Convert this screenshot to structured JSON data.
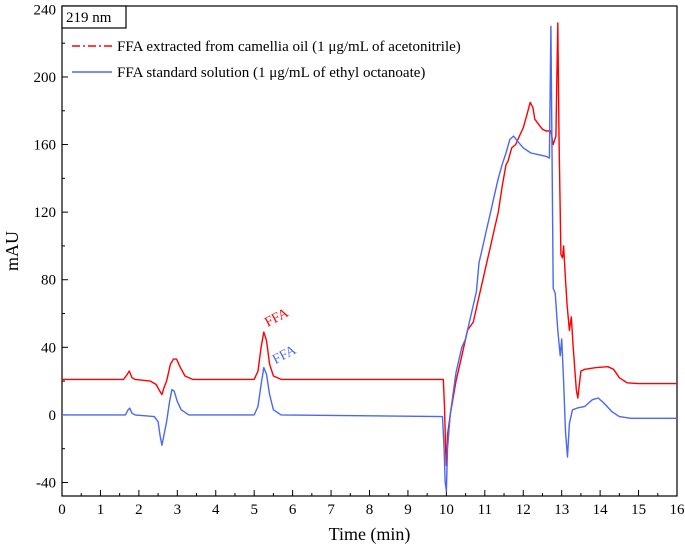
{
  "chart_data": {
    "type": "line",
    "title": "",
    "box_label": "219 nm",
    "xlabel": "Time (min)",
    "ylabel": "mAU",
    "xlim": [
      0,
      16
    ],
    "ylim": [
      -48,
      242
    ],
    "xticks": [
      0,
      1,
      2,
      3,
      4,
      5,
      6,
      7,
      8,
      9,
      10,
      11,
      12,
      13,
      14,
      15,
      16
    ],
    "yticks": [
      -40,
      0,
      40,
      80,
      120,
      160,
      200,
      240
    ],
    "grid": false,
    "legend_position": "top-center",
    "series": [
      {
        "name": "FFA extracted from camellia oil (1 μg/mL of acetonitrile)",
        "color": "#ff0000",
        "style": "dash-dot",
        "points": [
          [
            0,
            21
          ],
          [
            1.6,
            21
          ],
          [
            1.7,
            24
          ],
          [
            1.75,
            26
          ],
          [
            1.82,
            22
          ],
          [
            1.9,
            21
          ],
          [
            2.3,
            20
          ],
          [
            2.45,
            18
          ],
          [
            2.52,
            15
          ],
          [
            2.6,
            12
          ],
          [
            2.65,
            16
          ],
          [
            2.72,
            20
          ],
          [
            2.82,
            30
          ],
          [
            2.9,
            33
          ],
          [
            2.98,
            33
          ],
          [
            3.08,
            28
          ],
          [
            3.2,
            23
          ],
          [
            3.4,
            21
          ],
          [
            5.0,
            21
          ],
          [
            5.1,
            26
          ],
          [
            5.18,
            40
          ],
          [
            5.25,
            49
          ],
          [
            5.32,
            44
          ],
          [
            5.4,
            30
          ],
          [
            5.5,
            23
          ],
          [
            5.7,
            21
          ],
          [
            9.92,
            21
          ],
          [
            9.95,
            5
          ],
          [
            9.98,
            -20
          ],
          [
            10.0,
            -30
          ],
          [
            10.03,
            -12
          ],
          [
            10.1,
            0
          ],
          [
            10.25,
            20
          ],
          [
            10.4,
            35
          ],
          [
            10.55,
            50
          ],
          [
            10.7,
            55
          ],
          [
            10.85,
            70
          ],
          [
            10.95,
            80
          ],
          [
            11.05,
            90
          ],
          [
            11.15,
            100
          ],
          [
            11.25,
            110
          ],
          [
            11.35,
            120
          ],
          [
            11.45,
            135
          ],
          [
            11.55,
            148
          ],
          [
            11.6,
            150
          ],
          [
            11.7,
            158
          ],
          [
            11.8,
            160
          ],
          [
            11.9,
            165
          ],
          [
            12.0,
            170
          ],
          [
            12.1,
            178
          ],
          [
            12.18,
            185
          ],
          [
            12.25,
            182
          ],
          [
            12.3,
            175
          ],
          [
            12.4,
            172
          ],
          [
            12.5,
            169
          ],
          [
            12.6,
            168
          ],
          [
            12.72,
            168
          ],
          [
            12.78,
            160
          ],
          [
            12.85,
            165
          ],
          [
            12.9,
            232
          ],
          [
            12.93,
            165
          ],
          [
            12.98,
            95
          ],
          [
            13.02,
            93
          ],
          [
            13.05,
            100
          ],
          [
            13.1,
            80
          ],
          [
            13.14,
            65
          ],
          [
            13.2,
            50
          ],
          [
            13.25,
            58
          ],
          [
            13.3,
            40
          ],
          [
            13.38,
            15
          ],
          [
            13.42,
            10
          ],
          [
            13.5,
            26
          ],
          [
            13.6,
            27
          ],
          [
            13.9,
            28
          ],
          [
            14.2,
            28.5
          ],
          [
            14.35,
            27
          ],
          [
            14.5,
            22
          ],
          [
            14.7,
            19
          ],
          [
            15.0,
            18.5
          ],
          [
            16.0,
            18.5
          ]
        ]
      },
      {
        "name": "FFA standard solution (1 μg/mL of ethyl octanoate)",
        "color": "#4a68f0",
        "style": "solid",
        "points": [
          [
            0,
            0
          ],
          [
            1.65,
            0
          ],
          [
            1.72,
            3
          ],
          [
            1.76,
            4
          ],
          [
            1.82,
            1
          ],
          [
            1.9,
            0
          ],
          [
            2.4,
            -1
          ],
          [
            2.5,
            -4
          ],
          [
            2.55,
            -12
          ],
          [
            2.6,
            -18
          ],
          [
            2.65,
            -12
          ],
          [
            2.72,
            -4
          ],
          [
            2.8,
            8
          ],
          [
            2.86,
            15
          ],
          [
            2.92,
            14
          ],
          [
            3.0,
            8
          ],
          [
            3.1,
            3
          ],
          [
            3.3,
            0
          ],
          [
            5.0,
            0
          ],
          [
            5.1,
            5
          ],
          [
            5.18,
            18
          ],
          [
            5.25,
            28
          ],
          [
            5.32,
            24
          ],
          [
            5.4,
            12
          ],
          [
            5.5,
            3
          ],
          [
            5.7,
            0
          ],
          [
            9.9,
            -1
          ],
          [
            9.94,
            -20
          ],
          [
            9.97,
            -40
          ],
          [
            10.0,
            -45
          ],
          [
            10.03,
            -20
          ],
          [
            10.1,
            0
          ],
          [
            10.25,
            25
          ],
          [
            10.4,
            40
          ],
          [
            10.5,
            45
          ],
          [
            10.6,
            55
          ],
          [
            10.7,
            65
          ],
          [
            10.78,
            73
          ],
          [
            10.85,
            90
          ],
          [
            10.95,
            100
          ],
          [
            11.05,
            110
          ],
          [
            11.15,
            120
          ],
          [
            11.25,
            130
          ],
          [
            11.35,
            140
          ],
          [
            11.45,
            148
          ],
          [
            11.55,
            155
          ],
          [
            11.65,
            163
          ],
          [
            11.75,
            165
          ],
          [
            11.85,
            162
          ],
          [
            12.0,
            158
          ],
          [
            12.2,
            155
          ],
          [
            12.4,
            154
          ],
          [
            12.6,
            153
          ],
          [
            12.68,
            152
          ],
          [
            12.72,
            230
          ],
          [
            12.75,
            150
          ],
          [
            12.78,
            75
          ],
          [
            12.83,
            72
          ],
          [
            12.9,
            50
          ],
          [
            12.96,
            35
          ],
          [
            13.0,
            45
          ],
          [
            13.05,
            20
          ],
          [
            13.1,
            -10
          ],
          [
            13.15,
            -25
          ],
          [
            13.2,
            -5
          ],
          [
            13.28,
            3
          ],
          [
            13.4,
            4
          ],
          [
            13.6,
            5
          ],
          [
            13.8,
            9
          ],
          [
            13.95,
            10
          ],
          [
            14.1,
            7
          ],
          [
            14.3,
            2
          ],
          [
            14.5,
            -1
          ],
          [
            14.8,
            -2
          ],
          [
            15.2,
            -2
          ],
          [
            16.0,
            -2
          ]
        ]
      }
    ],
    "annotations": [
      {
        "text": "FFA",
        "x": 5.35,
        "y": 52,
        "series": 0
      },
      {
        "text": "FFA",
        "x": 5.55,
        "y": 30,
        "series": 1
      }
    ]
  }
}
